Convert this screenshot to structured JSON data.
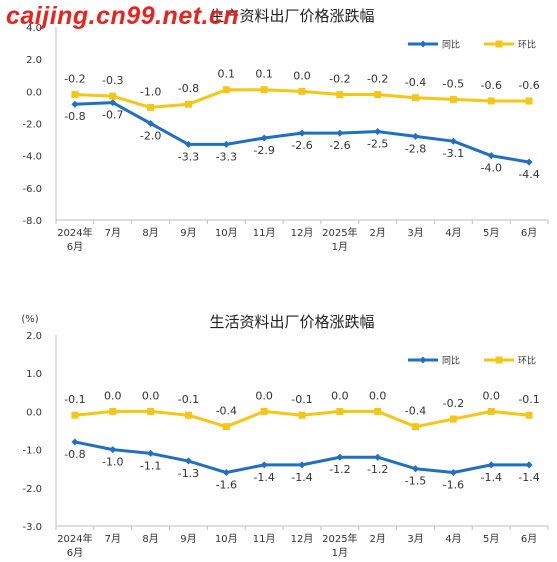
{
  "watermark": "caijing.cn99.net.cn",
  "chart_data": [
    {
      "type": "line",
      "title": "生产资料出厂价格涨跌幅",
      "unit_label": "",
      "categories": [
        [
          "2024年",
          "6月"
        ],
        [
          "7月"
        ],
        [
          "8月"
        ],
        [
          "9月"
        ],
        [
          "10月"
        ],
        [
          "11月"
        ],
        [
          "12月"
        ],
        [
          "2025年",
          "1月"
        ],
        [
          "2月"
        ],
        [
          "3月"
        ],
        [
          "4月"
        ],
        [
          "5月"
        ],
        [
          "6月"
        ]
      ],
      "series": [
        {
          "name": "同比",
          "color": "#1f6fc5",
          "marker": "diamond",
          "values": [
            -0.8,
            -0.7,
            -2.0,
            -3.3,
            -3.3,
            -2.9,
            -2.6,
            -2.6,
            -2.5,
            -2.8,
            -3.1,
            -4.0,
            -4.4
          ],
          "labels": [
            "-0.8",
            "-0.7",
            "-2.0",
            "-3.3",
            "-3.3",
            "-2.9",
            "-2.6",
            "-2.6",
            "-2.5",
            "-2.8",
            "-3.1",
            "-4.0",
            "-4.4"
          ]
        },
        {
          "name": "环比",
          "color": "#f5c518",
          "marker": "square",
          "values": [
            -0.2,
            -0.3,
            -1.0,
            -0.8,
            0.1,
            0.1,
            0.0,
            -0.2,
            -0.2,
            -0.4,
            -0.5,
            -0.6,
            -0.6
          ],
          "labels": [
            "-0.2",
            "-0.3",
            "-1.0",
            "-0.8",
            "0.1",
            "0.1",
            "0.0",
            "-0.2",
            "-0.2",
            "-0.4",
            "-0.5",
            "-0.6",
            "-0.6"
          ]
        }
      ],
      "ylim": [
        -8.0,
        4.0
      ],
      "yticks": [
        "4.0",
        "2.0",
        "0.0",
        "-2.0",
        "-4.0",
        "-6.0",
        "-8.0"
      ],
      "legend": "top-right",
      "grid": false
    },
    {
      "type": "line",
      "title": "生活资料出厂价格涨跌幅",
      "unit_label": "(%)",
      "categories": [
        [
          "2024年",
          "6月"
        ],
        [
          "7月"
        ],
        [
          "8月"
        ],
        [
          "9月"
        ],
        [
          "10月"
        ],
        [
          "11月"
        ],
        [
          "12月"
        ],
        [
          "2025年",
          "1月"
        ],
        [
          "2月"
        ],
        [
          "3月"
        ],
        [
          "4月"
        ],
        [
          "5月"
        ],
        [
          "6月"
        ]
      ],
      "series": [
        {
          "name": "同比",
          "color": "#1f6fc5",
          "marker": "diamond",
          "values": [
            -0.8,
            -1.0,
            -1.1,
            -1.3,
            -1.6,
            -1.4,
            -1.4,
            -1.2,
            -1.2,
            -1.5,
            -1.6,
            -1.4,
            -1.4
          ],
          "labels": [
            "-0.8",
            "-1.0",
            "-1.1",
            "-1.3",
            "-1.6",
            "-1.4",
            "-1.4",
            "-1.2",
            "-1.2",
            "-1.5",
            "-1.6",
            "-1.4",
            "-1.4"
          ]
        },
        {
          "name": "环比",
          "color": "#f5c518",
          "marker": "square",
          "values": [
            -0.1,
            0.0,
            0.0,
            -0.1,
            -0.4,
            0.0,
            -0.1,
            0.0,
            0.0,
            -0.4,
            -0.2,
            0.0,
            -0.1
          ],
          "labels": [
            "-0.1",
            "0.0",
            "0.0",
            "-0.1",
            "-0.4",
            "0.0",
            "-0.1",
            "0.0",
            "0.0",
            "-0.4",
            "-0.2",
            "0.0",
            "-0.1"
          ]
        }
      ],
      "ylim": [
        -3.0,
        2.0
      ],
      "yticks": [
        "2.0",
        "1.0",
        "0.0",
        "-1.0",
        "-2.0",
        "-3.0"
      ],
      "legend": "top-right",
      "grid": false
    }
  ]
}
